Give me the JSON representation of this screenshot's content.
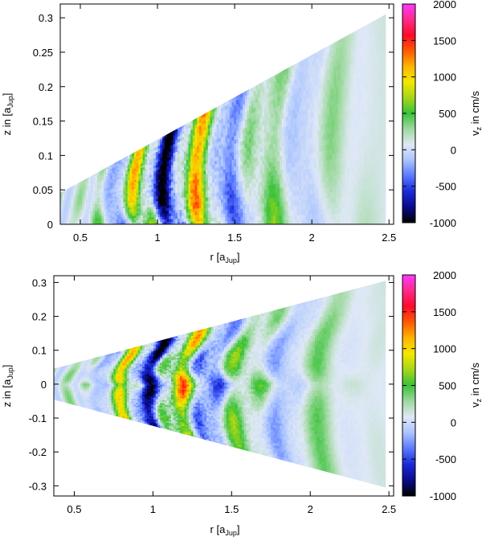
{
  "colorbar": {
    "label_main": "v",
    "label_sub": "z",
    "label_rest": " in cm/s",
    "ticks": [
      2000,
      1500,
      1000,
      500,
      0,
      -500,
      -1000
    ],
    "range": [
      -1000,
      2000
    ],
    "colors": [
      "#000000",
      "#0a0a8a",
      "#1a2ad8",
      "#5a78ff",
      "#aac4ff",
      "#dfe8f6",
      "#9ed99e",
      "#39c23a",
      "#a6d618",
      "#f2e800",
      "#ffb400",
      "#ff5a00",
      "#ff0a2a",
      "#ff2a8a",
      "#ff38ff"
    ]
  },
  "chart_data": [
    {
      "type": "heatmap",
      "title": "",
      "xlabel_main": "r [a",
      "xlabel_sub": "Jup",
      "xlabel_end": "]",
      "ylabel_main": "z in [a",
      "ylabel_sub": "Jup",
      "ylabel_end": "]",
      "xlim": [
        0.37,
        2.53
      ],
      "ylim": [
        0,
        0.32
      ],
      "xticks": [
        "0.5",
        "1",
        "1.5",
        "2",
        "2.5"
      ],
      "xtick_values": [
        0.5,
        1,
        1.5,
        2,
        2.5
      ],
      "yticks": [
        "0",
        "0.05",
        "0.1",
        "0.15",
        "0.2",
        "0.25",
        "0.3"
      ],
      "ytick_values": [
        0,
        0.05,
        0.1,
        0.15,
        0.2,
        0.25,
        0.3
      ],
      "domain": "wedge: 0 <= z <= 0.123 * r",
      "aspect_ratio_z_over_r": 0.123,
      "value_unit": "cm/s"
    },
    {
      "type": "heatmap",
      "title": "",
      "xlabel_main": "r [a",
      "xlabel_sub": "Jup",
      "xlabel_end": "]",
      "ylabel_main": "z in [a",
      "ylabel_sub": "Jup",
      "ylabel_end": "]",
      "xlim": [
        0.37,
        2.53
      ],
      "ylim": [
        -0.33,
        0.32
      ],
      "xticks": [
        "0.5",
        "1",
        "1.5",
        "2",
        "2.5"
      ],
      "xtick_values": [
        0.5,
        1,
        1.5,
        2,
        2.5
      ],
      "yticks": [
        "0.3",
        "0.2",
        "0.1",
        "0",
        "-0.1",
        "-0.2",
        "-0.3"
      ],
      "ytick_values": [
        0.3,
        0.2,
        0.1,
        0,
        -0.1,
        -0.2,
        -0.3
      ],
      "domain": "wedge: -0.123 * r <= z <= 0.123 * r",
      "aspect_ratio_z_over_r": 0.123,
      "value_unit": "cm/s"
    }
  ]
}
